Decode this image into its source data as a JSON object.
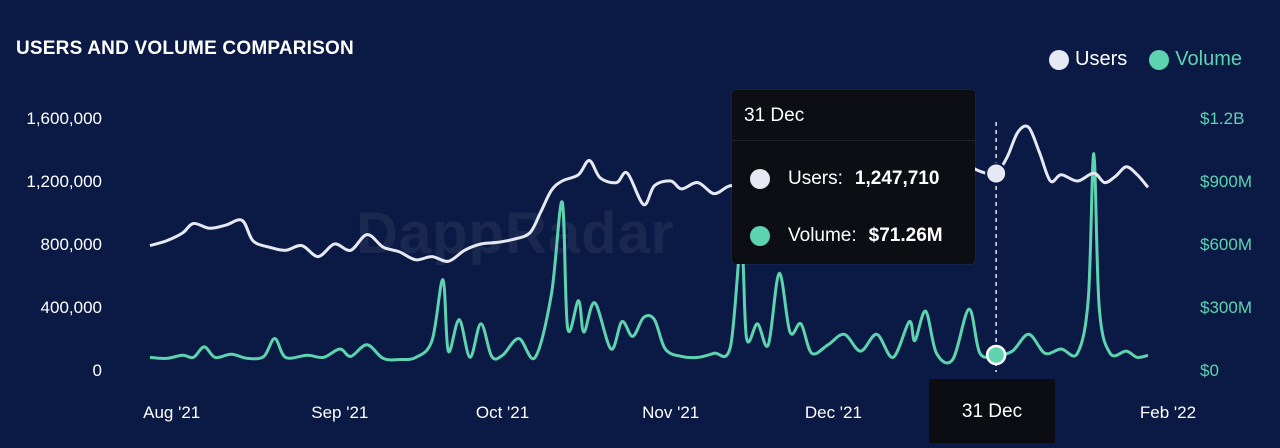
{
  "watermark": "DappRadar",
  "chart_data": {
    "type": "line",
    "title": "USERS AND VOLUME COMPARISON",
    "legend": {
      "placement": "top-right"
    },
    "x_ticks": [
      "Aug '21",
      "Sep '21",
      "Oct '21",
      "Nov '21",
      "Dec '21",
      "Feb '22"
    ],
    "x_range": [
      "2021-07-28",
      "2022-01-28"
    ],
    "y_left": {
      "ticks": [
        "0",
        "400,000",
        "800,000",
        "1,200,000",
        "1,600,000"
      ],
      "range": [
        0,
        1600000
      ]
    },
    "y_right": {
      "ticks": [
        "$0",
        "$300M",
        "$600M",
        "$900M",
        "$1.2B"
      ],
      "range": [
        0,
        1200
      ]
    },
    "grid": false,
    "series": [
      {
        "name": "Users",
        "axis": "left",
        "color": "#e6e8f2",
        "points": [
          [
            "2021-07-28",
            790000
          ],
          [
            "2021-07-31",
            820000
          ],
          [
            "2021-08-03",
            870000
          ],
          [
            "2021-08-05",
            930000
          ],
          [
            "2021-08-08",
            900000
          ],
          [
            "2021-08-11",
            920000
          ],
          [
            "2021-08-14",
            950000
          ],
          [
            "2021-08-16",
            820000
          ],
          [
            "2021-08-19",
            780000
          ],
          [
            "2021-08-22",
            760000
          ],
          [
            "2021-08-25",
            790000
          ],
          [
            "2021-08-28",
            720000
          ],
          [
            "2021-08-31",
            800000
          ],
          [
            "2021-09-03",
            760000
          ],
          [
            "2021-09-06",
            860000
          ],
          [
            "2021-09-09",
            780000
          ],
          [
            "2021-09-12",
            750000
          ],
          [
            "2021-09-15",
            700000
          ],
          [
            "2021-09-18",
            720000
          ],
          [
            "2021-09-21",
            690000
          ],
          [
            "2021-09-24",
            760000
          ],
          [
            "2021-09-27",
            800000
          ],
          [
            "2021-09-30",
            810000
          ],
          [
            "2021-10-03",
            830000
          ],
          [
            "2021-10-06",
            870000
          ],
          [
            "2021-10-08",
            1000000
          ],
          [
            "2021-10-10",
            1140000
          ],
          [
            "2021-10-12",
            1200000
          ],
          [
            "2021-10-15",
            1240000
          ],
          [
            "2021-10-17",
            1330000
          ],
          [
            "2021-10-19",
            1220000
          ],
          [
            "2021-10-22",
            1190000
          ],
          [
            "2021-10-24",
            1250000
          ],
          [
            "2021-10-27",
            1050000
          ],
          [
            "2021-10-29",
            1170000
          ],
          [
            "2021-11-01",
            1200000
          ],
          [
            "2021-11-03",
            1150000
          ],
          [
            "2021-11-06",
            1190000
          ],
          [
            "2021-11-09",
            1120000
          ],
          [
            "2021-11-12",
            1170000
          ],
          [
            "2021-11-15",
            1140000
          ],
          [
            "2021-11-18",
            1220000
          ],
          [
            "2021-11-21",
            1190000
          ],
          [
            "2021-11-24",
            1210000
          ],
          [
            "2021-11-27",
            1230000
          ],
          [
            "2021-11-30",
            1290000
          ],
          [
            "2021-12-03",
            1220000
          ],
          [
            "2021-12-06",
            1260000
          ],
          [
            "2021-12-09",
            1250000
          ],
          [
            "2021-12-12",
            1320000
          ],
          [
            "2021-12-15",
            1380000
          ],
          [
            "2021-12-18",
            1290000
          ],
          [
            "2021-12-21",
            1360000
          ],
          [
            "2021-12-24",
            1380000
          ],
          [
            "2021-12-26",
            1300000
          ],
          [
            "2021-12-29",
            1250000
          ],
          [
            "2021-12-31",
            1247710
          ],
          [
            "2022-01-02",
            1350000
          ],
          [
            "2022-01-04",
            1510000
          ],
          [
            "2022-01-06",
            1540000
          ],
          [
            "2022-01-08",
            1380000
          ],
          [
            "2022-01-10",
            1200000
          ],
          [
            "2022-01-12",
            1240000
          ],
          [
            "2022-01-15",
            1200000
          ],
          [
            "2022-01-18",
            1250000
          ],
          [
            "2022-01-20",
            1190000
          ],
          [
            "2022-01-22",
            1230000
          ],
          [
            "2022-01-24",
            1290000
          ],
          [
            "2022-01-26",
            1240000
          ],
          [
            "2022-01-28",
            1160000
          ]
        ]
      },
      {
        "name": "Volume",
        "axis": "right",
        "color": "#5ed3b0",
        "points": [
          [
            "2021-07-28",
            60
          ],
          [
            "2021-07-31",
            55
          ],
          [
            "2021-08-03",
            70
          ],
          [
            "2021-08-05",
            60
          ],
          [
            "2021-08-07",
            110
          ],
          [
            "2021-08-09",
            60
          ],
          [
            "2021-08-12",
            75
          ],
          [
            "2021-08-15",
            55
          ],
          [
            "2021-08-18",
            65
          ],
          [
            "2021-08-20",
            150
          ],
          [
            "2021-08-22",
            60
          ],
          [
            "2021-08-26",
            70
          ],
          [
            "2021-08-29",
            60
          ],
          [
            "2021-09-01",
            100
          ],
          [
            "2021-09-03",
            65
          ],
          [
            "2021-09-06",
            120
          ],
          [
            "2021-09-09",
            55
          ],
          [
            "2021-09-12",
            50
          ],
          [
            "2021-09-15",
            60
          ],
          [
            "2021-09-18",
            140
          ],
          [
            "2021-09-20",
            430
          ],
          [
            "2021-09-21",
            90
          ],
          [
            "2021-09-23",
            240
          ],
          [
            "2021-09-25",
            60
          ],
          [
            "2021-09-27",
            220
          ],
          [
            "2021-09-29",
            65
          ],
          [
            "2021-10-01",
            70
          ],
          [
            "2021-10-04",
            150
          ],
          [
            "2021-10-07",
            60
          ],
          [
            "2021-10-10",
            360
          ],
          [
            "2021-10-12",
            800
          ],
          [
            "2021-10-13",
            200
          ],
          [
            "2021-10-15",
            330
          ],
          [
            "2021-10-16",
            180
          ],
          [
            "2021-10-18",
            320
          ],
          [
            "2021-10-21",
            100
          ],
          [
            "2021-10-23",
            230
          ],
          [
            "2021-10-25",
            160
          ],
          [
            "2021-10-27",
            250
          ],
          [
            "2021-10-29",
            240
          ],
          [
            "2021-10-31",
            100
          ],
          [
            "2021-11-03",
            65
          ],
          [
            "2021-11-06",
            60
          ],
          [
            "2021-11-09",
            80
          ],
          [
            "2021-11-12",
            110
          ],
          [
            "2021-11-14",
            610
          ],
          [
            "2021-11-15",
            150
          ],
          [
            "2021-11-17",
            220
          ],
          [
            "2021-11-19",
            120
          ],
          [
            "2021-11-21",
            460
          ],
          [
            "2021-11-23",
            180
          ],
          [
            "2021-11-25",
            220
          ],
          [
            "2021-11-27",
            80
          ],
          [
            "2021-11-30",
            120
          ],
          [
            "2021-12-03",
            170
          ],
          [
            "2021-12-06",
            90
          ],
          [
            "2021-12-09",
            170
          ],
          [
            "2021-12-12",
            60
          ],
          [
            "2021-12-15",
            230
          ],
          [
            "2021-12-16",
            140
          ],
          [
            "2021-12-18",
            280
          ],
          [
            "2021-12-20",
            80
          ],
          [
            "2021-12-23",
            50
          ],
          [
            "2021-12-26",
            290
          ],
          [
            "2021-12-28",
            80
          ],
          [
            "2021-12-31",
            71.26
          ],
          [
            "2022-01-03",
            90
          ],
          [
            "2022-01-06",
            170
          ],
          [
            "2022-01-09",
            80
          ],
          [
            "2022-01-12",
            100
          ],
          [
            "2022-01-15",
            80
          ],
          [
            "2022-01-17",
            340
          ],
          [
            "2022-01-18",
            1030
          ],
          [
            "2022-01-19",
            300
          ],
          [
            "2022-01-21",
            80
          ],
          [
            "2022-01-24",
            90
          ],
          [
            "2022-01-26",
            60
          ],
          [
            "2022-01-28",
            70
          ]
        ]
      }
    ]
  },
  "tooltip": {
    "date": "31 Dec",
    "users_label": "Users:",
    "users_value": "1,247,710",
    "volume_label": "Volume:",
    "volume_value": "$71.26M"
  },
  "hover": {
    "date": "2021-12-31",
    "date_label": "31 Dec"
  }
}
